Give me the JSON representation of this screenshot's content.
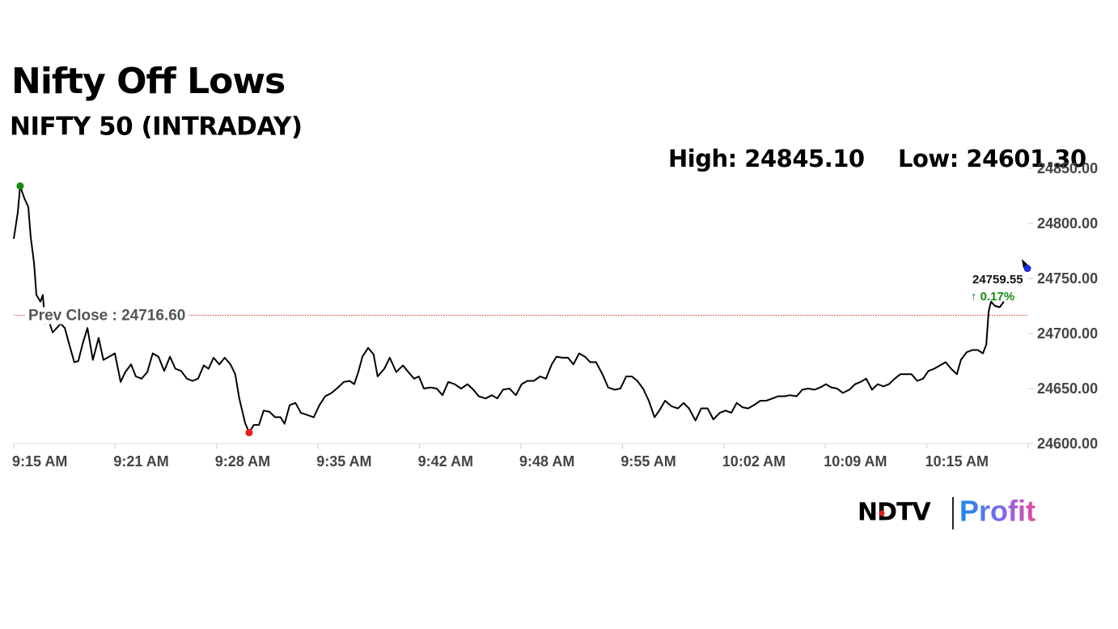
{
  "chart_data": {
    "type": "line",
    "title": "Nifty Off Lows",
    "subtitle": "NIFTY 50 (INTRADAY)",
    "high_text": "High: 24845.10",
    "low_text": "Low: 24601.30",
    "prev_close": {
      "value": 24716.6,
      "label": "Prev Close : 24716.60",
      "color": "#e03030"
    },
    "current": {
      "value": 24759.55,
      "change": "↑ 0.17%",
      "change_color": "#138a13",
      "color": "#1a2fd6"
    },
    "high_color": "#138a13",
    "low_color": "#e81c1c",
    "brand": {
      "left": "NDTV",
      "right": "Profit"
    },
    "xlim": [
      0,
      300
    ],
    "xticks": [
      {
        "value": 0,
        "label": "9:15 AM"
      },
      {
        "value": 30,
        "label": "9:21 AM"
      },
      {
        "value": 60,
        "label": "9:28 AM"
      },
      {
        "value": 90,
        "label": "9:35 AM"
      },
      {
        "value": 120,
        "label": "9:42 AM"
      },
      {
        "value": 150,
        "label": "9:48 AM"
      },
      {
        "value": 180,
        "label": "9:55 AM"
      },
      {
        "value": 210,
        "label": "10:02 AM"
      },
      {
        "value": 240,
        "label": "10:09 AM"
      },
      {
        "value": 270,
        "label": "10:15 AM"
      }
    ],
    "ylim": [
      24600,
      24850
    ],
    "yticks": [
      {
        "value": 24600,
        "label": "24600.00"
      },
      {
        "value": 24650,
        "label": "24650.00"
      },
      {
        "value": 24700,
        "label": "24700.00"
      },
      {
        "value": 24750,
        "label": "24750.00"
      },
      {
        "value": 24800,
        "label": "24800.00"
      },
      {
        "value": 24850,
        "label": "24850.00"
      }
    ],
    "series": [
      {
        "name": "NIFTY 50",
        "color": "#000000",
        "x": [
          0,
          1.2,
          1.9,
          3.1,
          4.3,
          5.0,
          6.0,
          6.7,
          7.9,
          8.6,
          9.3,
          10.3,
          11.5,
          13.9,
          15.1,
          16.7,
          17.9,
          19.1,
          20.3,
          21.8,
          23.4,
          25.1,
          26.5,
          28.2,
          29.9,
          31.6,
          33.0,
          34.7,
          36.1,
          37.8,
          39.5,
          41.1,
          42.8,
          44.5,
          46.2,
          47.8,
          49.5,
          51.2,
          52.9,
          54.5,
          56.2,
          57.6,
          59.1,
          60.8,
          62.4,
          64.1,
          65.5,
          66.7,
          68.4,
          69.6,
          71.0,
          72.5,
          73.9,
          75.6,
          77.3,
          78.9,
          80.1,
          81.6,
          83.3,
          84.9,
          86.8,
          88.7,
          90.4,
          92.1,
          94.0,
          95.9,
          97.6,
          99.3,
          100.7,
          101.9,
          103.1,
          104.8,
          106.4,
          107.6,
          109.6,
          111.2,
          113.1,
          115.1,
          116.7,
          118.4,
          119.8,
          121.3,
          123.2,
          125.1,
          126.8,
          128.5,
          130.4,
          132.3,
          134.2,
          135.9,
          137.5,
          139.5,
          141.4,
          143.0,
          144.7,
          146.6,
          148.5,
          150.2,
          151.9,
          153.8,
          155.7,
          157.4,
          159.1,
          160.5,
          162.2,
          163.9,
          165.5,
          167.2,
          168.9,
          170.5,
          172.2,
          174.1,
          175.8,
          177.7,
          179.4,
          181.1,
          182.8,
          184.4,
          186.1,
          187.8,
          189.5,
          190.9,
          192.6,
          194.5,
          196.4,
          198.1,
          199.7,
          201.6,
          203.3,
          205.2,
          206.9,
          208.8,
          210.5,
          212.2,
          213.8,
          215.5,
          217.2,
          218.9,
          220.8,
          222.5,
          224.4,
          226.0,
          228.0,
          229.6,
          231.5,
          233.2,
          234.9,
          236.8,
          238.5,
          240.2,
          241.8,
          243.5,
          245.2,
          247.1,
          248.8,
          250.4,
          252.1,
          253.8,
          255.5,
          257.2,
          258.8,
          260.5,
          262.2,
          263.8,
          265.5,
          267.2,
          268.9,
          270.5,
          272.2,
          273.9,
          275.6,
          277.2,
          278.9,
          280.1,
          281.8,
          283.5,
          285.1,
          286.6,
          287.6,
          288.3,
          289.0,
          290.2,
          291.6,
          292.8
        ],
        "values": [
          24786,
          24810,
          24834,
          24823,
          24815,
          24788,
          24764,
          24735,
          24729,
          24735,
          24709,
          24712,
          24701,
          24709,
          24705,
          24687,
          24674,
          24675,
          24690,
          24705,
          24676,
          24696,
          24676,
          24679,
          24682,
          24656,
          24665,
          24672,
          24661,
          24659,
          24665,
          24682,
          24679,
          24666,
          24679,
          24668,
          24666,
          24659,
          24657,
          24659,
          24671,
          24668,
          24678,
          24672,
          24678,
          24672,
          24663,
          24641,
          24619,
          24610,
          24617,
          24617,
          24630,
          24629,
          24624,
          24624,
          24618,
          24635,
          24637,
          24628,
          24626,
          24624,
          24635,
          24643,
          24646,
          24651,
          24656,
          24657,
          24654,
          24665,
          24679,
          24687,
          24681,
          24661,
          24668,
          24678,
          24665,
          24671,
          24665,
          24659,
          24661,
          24650,
          24651,
          24650,
          24644,
          24656,
          24654,
          24650,
          24654,
          24649,
          24643,
          24641,
          24644,
          24641,
          24649,
          24650,
          24644,
          24654,
          24657,
          24657,
          24661,
          24659,
          24672,
          24679,
          24678,
          24678,
          24672,
          24682,
          24679,
          24674,
          24674,
          24663,
          24651,
          24649,
          24650,
          24661,
          24661,
          24657,
          24650,
          24639,
          24624,
          24630,
          24639,
          24634,
          24632,
          24637,
          24632,
          24621,
          24632,
          24632,
          24622,
          24628,
          24630,
          24628,
          24637,
          24633,
          24632,
          24635,
          24639,
          24639,
          24641,
          24643,
          24643,
          24644,
          24643,
          24649,
          24650,
          24649,
          24651,
          24654,
          24651,
          24650,
          24646,
          24649,
          24654,
          24656,
          24659,
          24649,
          24654,
          24652,
          24654,
          24659,
          24663,
          24663,
          24663,
          24657,
          24659,
          24666,
          24668,
          24671,
          24674,
          24668,
          24663,
          24676,
          24683,
          24685,
          24685,
          24682,
          24690,
          24720,
          24729,
          24725,
          24724,
          24729
        ]
      }
    ]
  }
}
